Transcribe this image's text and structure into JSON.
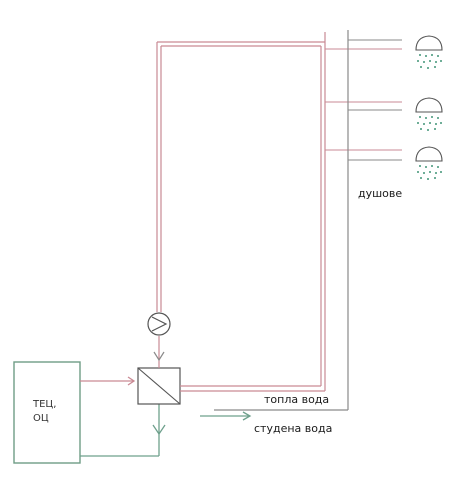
{
  "labels": {
    "plant_line1": "ТЕЦ,",
    "plant_line2": "ОЦ",
    "showers": "душове",
    "hot_water": "топла вода",
    "cold_water": "студена вода"
  },
  "icons": {
    "pump": "pump-icon",
    "heat_exchanger": "heat-exchanger-icon",
    "shower_heads": [
      "shower-head-icon",
      "shower-head-icon",
      "shower-head-icon"
    ]
  },
  "colors": {
    "hot_pipe": "#c98a94",
    "cold_pipe": "#6ea08c",
    "neutral_pipe": "#8a8a8a",
    "equipment": "#555555",
    "plant_outline": "#6f9c86",
    "spray": "#6fae98"
  }
}
